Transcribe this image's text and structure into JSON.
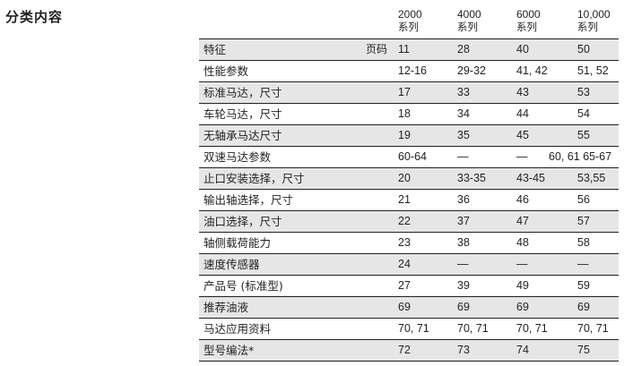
{
  "title": "分类内容",
  "columns": [
    {
      "number": "2000",
      "sub": "系列"
    },
    {
      "number": "4000",
      "sub": "系列"
    },
    {
      "number": "6000",
      "sub": "系列"
    },
    {
      "number": "10,000",
      "sub": "系列"
    }
  ],
  "page_label": "页码",
  "rows": [
    {
      "label": "特征",
      "values": [
        "11",
        "28",
        "40",
        "50"
      ]
    },
    {
      "label": "性能参数",
      "values": [
        "12-16",
        "29-32",
        "41, 42",
        "51, 52"
      ]
    },
    {
      "label": "标准马达，尺寸",
      "values": [
        "17",
        "33",
        "43",
        "53"
      ]
    },
    {
      "label": "车轮马达，尺寸",
      "values": [
        "18",
        "34",
        "44",
        "54"
      ]
    },
    {
      "label": "无轴承马达尺寸",
      "values": [
        "19",
        "35",
        "45",
        "55"
      ]
    },
    {
      "label": "双速马达参数",
      "values": [
        "60-64",
        "—",
        "—",
        "60, 61  65-67"
      ]
    },
    {
      "label": "止口安装选择，尺寸",
      "values": [
        "20",
        "33-35",
        "43-45",
        "53,55"
      ]
    },
    {
      "label": "输出轴选择，尺寸",
      "values": [
        "21",
        "36",
        "46",
        "56"
      ]
    },
    {
      "label": "油口选择，尺寸",
      "values": [
        "22",
        "37",
        "47",
        "57"
      ]
    },
    {
      "label": "轴侧载荷能力",
      "values": [
        "23",
        "38",
        "48",
        "58"
      ]
    },
    {
      "label": "速度传感器",
      "values": [
        "24",
        "—",
        "—",
        "—"
      ]
    },
    {
      "label": "产品号 (标准型)",
      "values": [
        "27",
        "39",
        "49",
        "59"
      ]
    },
    {
      "label": "推荐油液",
      "values": [
        "69",
        "69",
        "69",
        "69"
      ]
    },
    {
      "label": "马达应用资料",
      "values": [
        "70, 71",
        "70, 71",
        "70, 71",
        "70, 71"
      ]
    },
    {
      "label": "型号编法*",
      "values": [
        "72",
        "73",
        "74",
        "75"
      ]
    }
  ]
}
